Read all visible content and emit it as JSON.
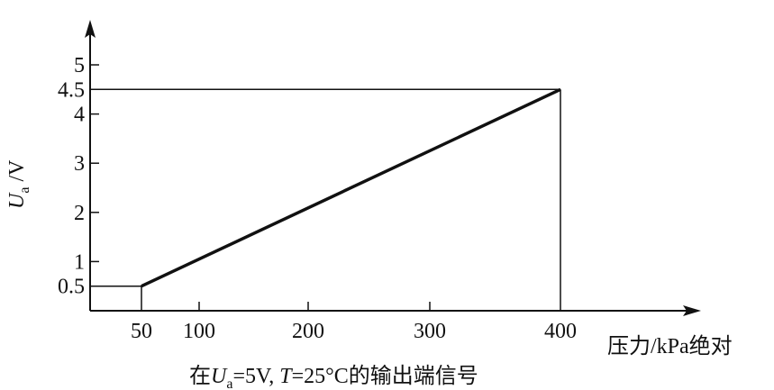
{
  "chart_data": {
    "type": "line",
    "title": "",
    "caption": {
      "prefix": "在",
      "var1": "U",
      "sub1": "a",
      "mid": "=5V, ",
      "var2": "T",
      "suffix": "=25°C的输出端信号"
    },
    "xlabel": "压力/kPa绝对",
    "ylabel": {
      "var": "U",
      "sub": "a",
      "unit": " /V"
    },
    "x_ticks": [
      50,
      100,
      200,
      300,
      400
    ],
    "y_ticks": [
      0.5,
      1,
      2,
      3,
      4,
      4.5,
      5
    ],
    "xlim": [
      0,
      450
    ],
    "ylim": [
      0,
      5.5
    ],
    "grid": false,
    "series": [
      {
        "x": [
          50,
          400
        ],
        "y": [
          0.5,
          4.5
        ]
      }
    ],
    "reference_lines": [
      {
        "from": [
          0,
          0.5
        ],
        "to": [
          50,
          0.5
        ]
      },
      {
        "from": [
          50,
          0.5
        ],
        "to": [
          50,
          0
        ]
      },
      {
        "from": [
          0,
          4.5
        ],
        "to": [
          400,
          4.5
        ]
      },
      {
        "from": [
          400,
          4.5
        ],
        "to": [
          400,
          0
        ]
      }
    ],
    "line_color": "#111111"
  }
}
